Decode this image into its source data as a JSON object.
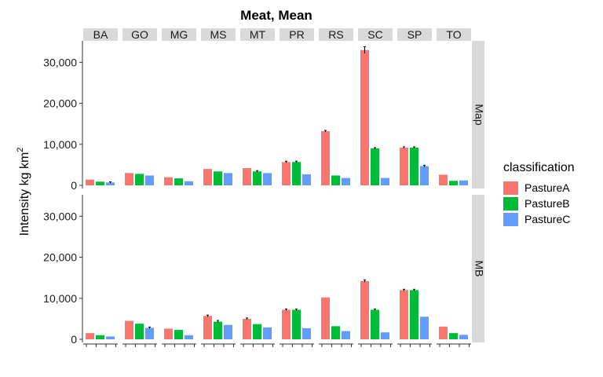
{
  "chart_data": {
    "type": "bar",
    "title": "Meat, Mean",
    "ylabel": "Intensity kg km",
    "ylabel_superscript": "2",
    "ylim": [
      0,
      36000
    ],
    "yticks": [
      0,
      10000,
      20000,
      30000
    ],
    "ytick_labels": [
      "0",
      "10,000",
      "20,000",
      "30,000"
    ],
    "facet_cols": [
      "BA",
      "GO",
      "MG",
      "MS",
      "MT",
      "PR",
      "RS",
      "SC",
      "SP",
      "TO"
    ],
    "facet_rows": [
      "Map",
      "MB"
    ],
    "legend_title": "classification",
    "legend_position": "right",
    "series": [
      {
        "name": "PastureA",
        "color": "#F8766D"
      },
      {
        "name": "PastureB",
        "color": "#00BA38"
      },
      {
        "name": "PastureC",
        "color": "#619CFF"
      }
    ],
    "panels": {
      "Map": {
        "values": [
          [
            1400,
            900,
            700
          ],
          [
            3000,
            2800,
            2400
          ],
          [
            2000,
            1700,
            1000
          ],
          [
            4000,
            3400,
            3000
          ],
          [
            4200,
            3400,
            3000
          ],
          [
            5700,
            5700,
            2700
          ],
          [
            13200,
            2400,
            1800
          ],
          [
            33000,
            9000,
            1800
          ],
          [
            9200,
            9200,
            4700
          ],
          [
            2600,
            1100,
            1200
          ]
        ],
        "errors": [
          [
            0,
            0,
            150
          ],
          [
            0,
            0,
            0
          ],
          [
            0,
            0,
            0
          ],
          [
            0,
            0,
            0
          ],
          [
            0,
            200,
            0
          ],
          [
            200,
            200,
            0
          ],
          [
            200,
            0,
            0
          ],
          [
            800,
            200,
            0
          ],
          [
            200,
            200,
            200
          ],
          [
            0,
            0,
            0
          ]
        ]
      },
      "MB": {
        "values": [
          [
            1500,
            1000,
            700
          ],
          [
            4500,
            3800,
            2800
          ],
          [
            2600,
            2300,
            1000
          ],
          [
            5700,
            4300,
            3500
          ],
          [
            5000,
            3700,
            2900
          ],
          [
            7200,
            7200,
            2700
          ],
          [
            10200,
            3200,
            2000
          ],
          [
            14200,
            7200,
            1700
          ],
          [
            12000,
            12000,
            5500
          ],
          [
            3100,
            1500,
            1100
          ]
        ],
        "errors": [
          [
            0,
            0,
            0
          ],
          [
            0,
            0,
            200
          ],
          [
            0,
            0,
            0
          ],
          [
            200,
            300,
            0
          ],
          [
            200,
            0,
            0
          ],
          [
            200,
            200,
            0
          ],
          [
            0,
            0,
            0
          ],
          [
            300,
            200,
            0
          ],
          [
            200,
            200,
            0
          ],
          [
            0,
            0,
            0
          ]
        ]
      }
    }
  }
}
